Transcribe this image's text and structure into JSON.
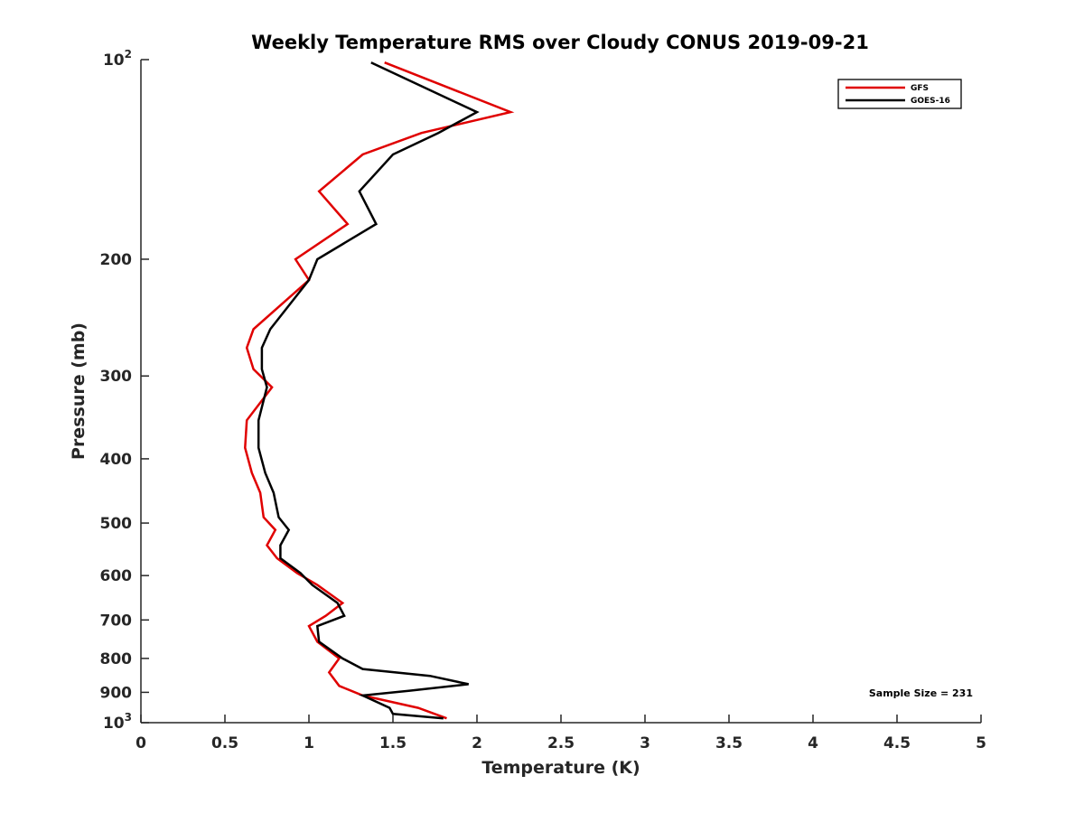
{
  "chart_data": {
    "type": "line",
    "title": "Weekly Temperature RMS over Cloudy CONUS 2019-09-21",
    "xlabel": "Temperature (K)",
    "ylabel": "Pressure (mb)",
    "xlim": [
      0,
      5
    ],
    "ylim": [
      100,
      1000
    ],
    "y_scale": "log",
    "y_reversed": true,
    "x_ticks": [
      0,
      0.5,
      1,
      1.5,
      2,
      2.5,
      3,
      3.5,
      4,
      4.5,
      5
    ],
    "x_tick_labels": [
      "0",
      "0.5",
      "1",
      "1.5",
      "2",
      "2.5",
      "3",
      "3.5",
      "4",
      "4.5",
      "5"
    ],
    "y_ticks": [
      {
        "value": 100,
        "base": "10",
        "exp": "2"
      },
      {
        "value": 200,
        "base": "200",
        "exp": ""
      },
      {
        "value": 300,
        "base": "300",
        "exp": ""
      },
      {
        "value": 400,
        "base": "400",
        "exp": ""
      },
      {
        "value": 500,
        "base": "500",
        "exp": ""
      },
      {
        "value": 600,
        "base": "600",
        "exp": ""
      },
      {
        "value": 700,
        "base": "700",
        "exp": ""
      },
      {
        "value": 800,
        "base": "800",
        "exp": ""
      },
      {
        "value": 900,
        "base": "900",
        "exp": ""
      },
      {
        "value": 1000,
        "base": "10",
        "exp": "3"
      }
    ],
    "grid": false,
    "legend_position": "top-right",
    "annotation": "Sample Size = 231",
    "series": [
      {
        "name": "GFS",
        "color": "#e00000",
        "points": [
          [
            1.45,
            101
          ],
          [
            2.2,
            120
          ],
          [
            1.67,
            129
          ],
          [
            1.32,
            139
          ],
          [
            1.06,
            158
          ],
          [
            1.23,
            177
          ],
          [
            0.92,
            200
          ],
          [
            1.0,
            215
          ],
          [
            0.67,
            255
          ],
          [
            0.63,
            272
          ],
          [
            0.67,
            293
          ],
          [
            0.78,
            312
          ],
          [
            0.63,
            350
          ],
          [
            0.62,
            385
          ],
          [
            0.66,
            420
          ],
          [
            0.71,
            450
          ],
          [
            0.73,
            490
          ],
          [
            0.8,
            512
          ],
          [
            0.75,
            540
          ],
          [
            0.81,
            565
          ],
          [
            0.93,
            595
          ],
          [
            1.05,
            620
          ],
          [
            1.2,
            660
          ],
          [
            1.1,
            690
          ],
          [
            1.0,
            715
          ],
          [
            1.05,
            755
          ],
          [
            1.18,
            800
          ],
          [
            1.12,
            840
          ],
          [
            1.18,
            880
          ],
          [
            1.32,
            910
          ],
          [
            1.65,
            950
          ],
          [
            1.82,
            985
          ]
        ]
      },
      {
        "name": "GOES-16",
        "color": "#000000",
        "points": [
          [
            1.37,
            101
          ],
          [
            2.0,
            120
          ],
          [
            1.77,
            129
          ],
          [
            1.5,
            139
          ],
          [
            1.3,
            158
          ],
          [
            1.4,
            177
          ],
          [
            1.05,
            200
          ],
          [
            1.0,
            215
          ],
          [
            0.77,
            255
          ],
          [
            0.72,
            272
          ],
          [
            0.72,
            293
          ],
          [
            0.75,
            312
          ],
          [
            0.7,
            350
          ],
          [
            0.7,
            385
          ],
          [
            0.74,
            420
          ],
          [
            0.79,
            450
          ],
          [
            0.82,
            490
          ],
          [
            0.88,
            512
          ],
          [
            0.83,
            540
          ],
          [
            0.83,
            565
          ],
          [
            0.95,
            595
          ],
          [
            1.02,
            620
          ],
          [
            1.17,
            660
          ],
          [
            1.21,
            690
          ],
          [
            1.05,
            715
          ],
          [
            1.06,
            755
          ],
          [
            1.2,
            800
          ],
          [
            1.32,
            830
          ],
          [
            1.72,
            850
          ],
          [
            1.95,
            875
          ],
          [
            1.6,
            895
          ],
          [
            1.32,
            910
          ],
          [
            1.48,
            950
          ],
          [
            1.5,
            970
          ],
          [
            1.8,
            985
          ]
        ]
      }
    ]
  }
}
